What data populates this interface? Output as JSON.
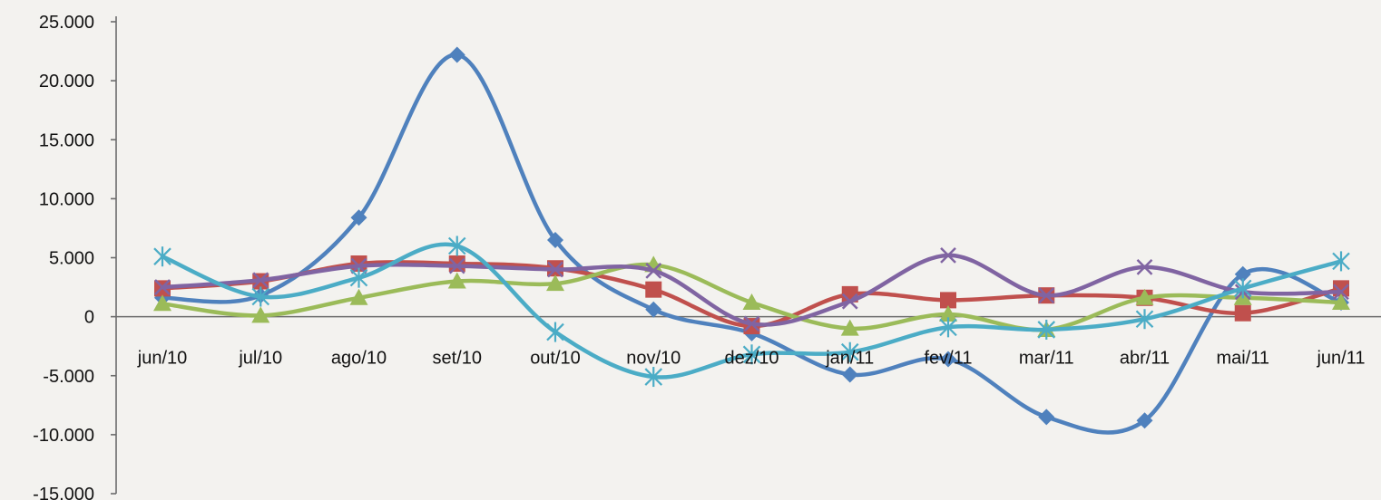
{
  "chart_data": {
    "type": "line",
    "title": "",
    "xlabel": "",
    "ylabel": "",
    "categories": [
      "jun/10",
      "jul/10",
      "ago/10",
      "set/10",
      "out/10",
      "nov/10",
      "dez/10",
      "jan/11",
      "fev/11",
      "mar/11",
      "abr/11",
      "mai/11",
      "jun/11"
    ],
    "ylim": [
      -15000,
      25000
    ],
    "y_ticks": [
      {
        "value": 25000,
        "label": "25.000"
      },
      {
        "value": 20000,
        "label": "20.000"
      },
      {
        "value": 15000,
        "label": "15.000"
      },
      {
        "value": 10000,
        "label": "10.000"
      },
      {
        "value": 5000,
        "label": "5.000"
      },
      {
        "value": 0,
        "label": "0"
      },
      {
        "value": -5000,
        "label": "-5.000"
      },
      {
        "value": -10000,
        "label": "-10.000"
      },
      {
        "value": -15000,
        "label": "-15.000"
      }
    ],
    "grid": false,
    "legend": "none",
    "smooth": true,
    "series": [
      {
        "color": "#4f81bd",
        "marker": "diamond",
        "values": [
          1600,
          1800,
          8400,
          22200,
          6500,
          600,
          -1400,
          -4900,
          -3600,
          -8500,
          -8800,
          3600,
          1200
        ]
      },
      {
        "color": "#c0504d",
        "marker": "square",
        "values": [
          2400,
          3000,
          4500,
          4500,
          4100,
          2300,
          -800,
          1900,
          1400,
          1800,
          1600,
          300,
          2400
        ]
      },
      {
        "color": "#9bbb59",
        "marker": "triangle",
        "values": [
          1100,
          100,
          1600,
          3000,
          2800,
          4400,
          1200,
          -1000,
          200,
          -1100,
          1600,
          1600,
          1200
        ]
      },
      {
        "color": "#8064a2",
        "marker": "x",
        "values": [
          2500,
          3100,
          4300,
          4300,
          4000,
          3900,
          -600,
          1300,
          5200,
          1800,
          4200,
          2100,
          2100
        ]
      },
      {
        "color": "#4bacc6",
        "marker": "star",
        "values": [
          5100,
          1700,
          3300,
          6000,
          -1300,
          -5100,
          -3200,
          -3000,
          -900,
          -1100,
          -200,
          2400,
          4700
        ]
      }
    ]
  }
}
